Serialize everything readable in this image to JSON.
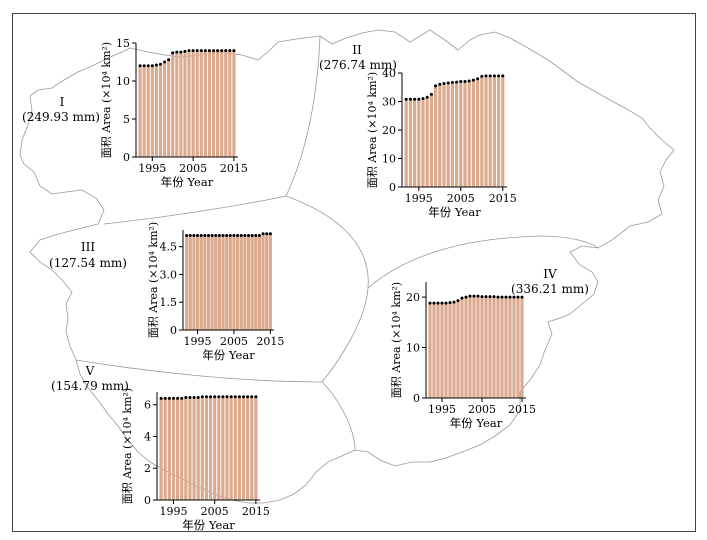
{
  "regions": [
    {
      "numeral": "I",
      "precip": "(249.93 mm)"
    },
    {
      "numeral": "II",
      "precip": "(276.74 mm)"
    },
    {
      "numeral": "III",
      "precip": "(127.54 mm)"
    },
    {
      "numeral": "IV",
      "precip": "(336.21 mm)"
    },
    {
      "numeral": "V",
      "precip": "(154.79 mm)"
    }
  ],
  "colors": {
    "bar": "#dcab8f",
    "marker": "#000000",
    "boundary": "#999999",
    "border": "#444444"
  },
  "chart_data": [
    {
      "type": "bar",
      "region": "I",
      "xlabel": "年份 Year",
      "ylabel": "面积 Area (×10⁴ km²)",
      "x": [
        1992,
        1993,
        1994,
        1995,
        1996,
        1997,
        1998,
        1999,
        2000,
        2001,
        2002,
        2003,
        2004,
        2005,
        2006,
        2007,
        2008,
        2009,
        2010,
        2011,
        2012,
        2013,
        2014,
        2015
      ],
      "values": [
        12.0,
        12.0,
        12.0,
        12.0,
        12.1,
        12.2,
        12.5,
        12.8,
        13.7,
        13.8,
        13.8,
        13.9,
        14.0,
        14.0,
        14.0,
        14.0,
        14.0,
        14.0,
        14.0,
        14.0,
        14.0,
        14.0,
        14.0,
        14.0
      ],
      "ylim": [
        0,
        15
      ],
      "yticks": [
        0,
        5,
        10,
        15
      ],
      "xticks": [
        1995,
        2005,
        2015
      ]
    },
    {
      "type": "bar",
      "region": "II",
      "xlabel": "年份 Year",
      "ylabel": "面积 Area (×10⁴ km²)",
      "x": [
        1992,
        1993,
        1994,
        1995,
        1996,
        1997,
        1998,
        1999,
        2000,
        2001,
        2002,
        2003,
        2004,
        2005,
        2006,
        2007,
        2008,
        2009,
        2010,
        2011,
        2012,
        2013,
        2014,
        2015
      ],
      "values": [
        30.8,
        30.8,
        30.8,
        30.8,
        31.0,
        31.5,
        32.5,
        35.5,
        36.0,
        36.3,
        36.5,
        36.7,
        36.8,
        37.0,
        37.0,
        37.2,
        37.5,
        38.0,
        38.8,
        39.0,
        39.0,
        39.0,
        39.0,
        39.0
      ],
      "ylim": [
        0,
        40
      ],
      "yticks": [
        0,
        10,
        20,
        30,
        40
      ],
      "xticks": [
        1995,
        2005,
        2015
      ]
    },
    {
      "type": "bar",
      "region": "III",
      "xlabel": "年份 Year",
      "ylabel": "面积 Area (×10⁴ km²)",
      "x": [
        1992,
        1993,
        1994,
        1995,
        1996,
        1997,
        1998,
        1999,
        2000,
        2001,
        2002,
        2003,
        2004,
        2005,
        2006,
        2007,
        2008,
        2009,
        2010,
        2011,
        2012,
        2013,
        2014,
        2015
      ],
      "values": [
        5.1,
        5.1,
        5.1,
        5.1,
        5.1,
        5.1,
        5.1,
        5.1,
        5.1,
        5.1,
        5.1,
        5.1,
        5.1,
        5.1,
        5.1,
        5.1,
        5.1,
        5.1,
        5.1,
        5.1,
        5.1,
        5.2,
        5.2,
        5.2
      ],
      "ylim": [
        0,
        5.4
      ],
      "yticks": [
        0,
        1.5,
        3.0,
        4.5
      ],
      "ytick_labels": [
        "0",
        "1.5",
        "3.0",
        "4.5"
      ],
      "xticks": [
        1995,
        2005,
        2015
      ]
    },
    {
      "type": "bar",
      "region": "IV",
      "xlabel": "年份 Year",
      "ylabel": "面积 Area (×10⁴ km²)",
      "x": [
        1992,
        1993,
        1994,
        1995,
        1996,
        1997,
        1998,
        1999,
        2000,
        2001,
        2002,
        2003,
        2004,
        2005,
        2006,
        2007,
        2008,
        2009,
        2010,
        2011,
        2012,
        2013,
        2014,
        2015
      ],
      "values": [
        18.8,
        18.8,
        18.8,
        18.8,
        18.8,
        18.9,
        19.0,
        19.3,
        19.8,
        20.0,
        20.2,
        20.2,
        20.2,
        20.1,
        20.1,
        20.1,
        20.1,
        20.0,
        20.0,
        20.0,
        20.0,
        20.0,
        20.0,
        20.0
      ],
      "ylim": [
        0,
        23
      ],
      "yticks": [
        0,
        10,
        20
      ],
      "xticks": [
        1995,
        2005,
        2015
      ]
    },
    {
      "type": "bar",
      "region": "V",
      "xlabel": "年份 Year",
      "ylabel": "面积 Area (×10⁴ km²)",
      "x": [
        1992,
        1993,
        1994,
        1995,
        1996,
        1997,
        1998,
        1999,
        2000,
        2001,
        2002,
        2003,
        2004,
        2005,
        2006,
        2007,
        2008,
        2009,
        2010,
        2011,
        2012,
        2013,
        2014,
        2015
      ],
      "values": [
        6.4,
        6.4,
        6.4,
        6.4,
        6.4,
        6.4,
        6.45,
        6.45,
        6.45,
        6.45,
        6.5,
        6.5,
        6.5,
        6.5,
        6.5,
        6.5,
        6.5,
        6.5,
        6.5,
        6.5,
        6.5,
        6.5,
        6.5,
        6.5
      ],
      "ylim": [
        0,
        6.8
      ],
      "yticks": [
        0,
        2,
        4,
        6
      ],
      "xticks": [
        1995,
        2005,
        2015
      ]
    }
  ]
}
